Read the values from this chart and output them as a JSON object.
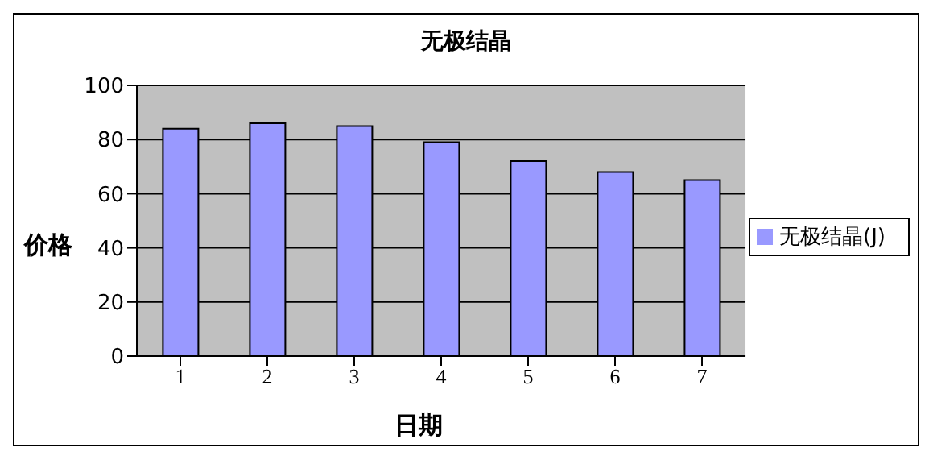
{
  "chart_data": {
    "type": "bar",
    "title": "无极结晶",
    "xlabel": "日期",
    "ylabel": "价格",
    "categories": [
      "1",
      "2",
      "3",
      "4",
      "5",
      "6",
      "7"
    ],
    "series": [
      {
        "name": "无极结晶(J)",
        "color": "#9999ff",
        "values": [
          84,
          86,
          85,
          79,
          72,
          68,
          65
        ]
      }
    ],
    "ylim": [
      0,
      100
    ],
    "yticks": [
      0,
      20,
      40,
      60,
      80,
      100
    ],
    "grid": "y",
    "legend": "right"
  }
}
